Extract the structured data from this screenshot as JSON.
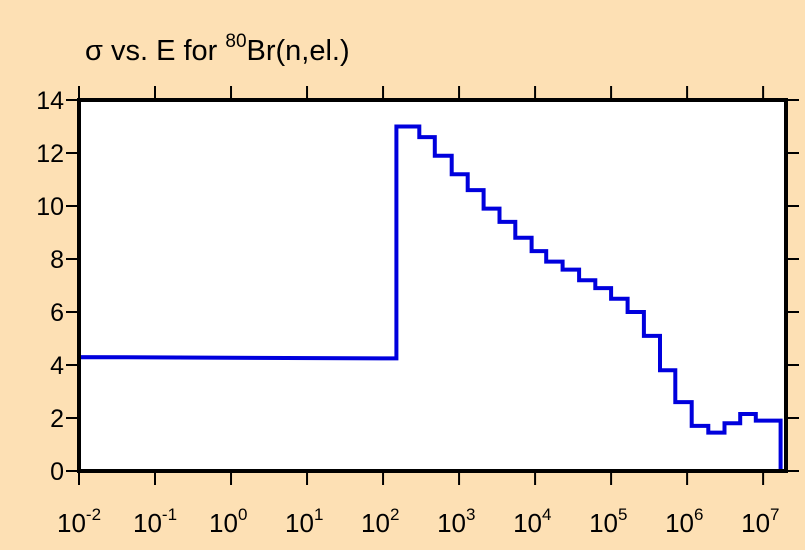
{
  "chart_data": {
    "type": "line",
    "title_prefix": "σ vs. E for ",
    "title_sup": "80",
    "title_suffix": "Br(n,el.)",
    "xlabel": "",
    "ylabel": "",
    "x_scale": "log",
    "xlim": [
      0.01,
      20000000
    ],
    "ylim": [
      0,
      14
    ],
    "y_ticks": [
      0,
      2,
      4,
      6,
      8,
      10,
      12,
      14
    ],
    "y_tick_labels": [
      "0",
      "2",
      "4",
      "6",
      "8",
      "10",
      "12",
      "14"
    ],
    "x_ticks": [
      0.01,
      0.1,
      1,
      10,
      100,
      1000,
      10000,
      100000,
      1000000,
      10000000
    ],
    "x_tick_labels": [
      {
        "base": "10",
        "exp": "-2"
      },
      {
        "base": "10",
        "exp": "-1"
      },
      {
        "base": "10",
        "exp": "0"
      },
      {
        "base": "10",
        "exp": "1"
      },
      {
        "base": "10",
        "exp": "2"
      },
      {
        "base": "10",
        "exp": "3"
      },
      {
        "base": "10",
        "exp": "4"
      },
      {
        "base": "10",
        "exp": "5"
      },
      {
        "base": "10",
        "exp": "6"
      },
      {
        "base": "10",
        "exp": "7"
      }
    ],
    "grid": false,
    "legend": "none",
    "series": [
      {
        "color": "#0000dd",
        "step": true,
        "points": [
          [
            0.01,
            0
          ],
          [
            0.01,
            4.3
          ],
          [
            150,
            4.25
          ],
          [
            150,
            13.0
          ],
          [
            300,
            13.0
          ],
          [
            300,
            12.6
          ],
          [
            480,
            12.6
          ],
          [
            480,
            11.9
          ],
          [
            800,
            11.9
          ],
          [
            800,
            11.2
          ],
          [
            1300,
            11.2
          ],
          [
            1300,
            10.6
          ],
          [
            2100,
            10.6
          ],
          [
            2100,
            9.9
          ],
          [
            3400,
            9.9
          ],
          [
            3400,
            9.4
          ],
          [
            5500,
            9.4
          ],
          [
            5500,
            8.8
          ],
          [
            9000,
            8.8
          ],
          [
            9000,
            8.3
          ],
          [
            14000,
            8.3
          ],
          [
            14000,
            7.9
          ],
          [
            23000,
            7.9
          ],
          [
            23000,
            7.6
          ],
          [
            38000,
            7.6
          ],
          [
            38000,
            7.2
          ],
          [
            62000,
            7.2
          ],
          [
            62000,
            6.9
          ],
          [
            100000,
            6.9
          ],
          [
            100000,
            6.5
          ],
          [
            165000,
            6.5
          ],
          [
            165000,
            6.0
          ],
          [
            270000,
            6.0
          ],
          [
            270000,
            5.1
          ],
          [
            440000,
            5.1
          ],
          [
            440000,
            3.8
          ],
          [
            700000,
            3.8
          ],
          [
            700000,
            2.6
          ],
          [
            1150000,
            2.6
          ],
          [
            1150000,
            1.7
          ],
          [
            1900000,
            1.7
          ],
          [
            1900000,
            1.45
          ],
          [
            3100000,
            1.45
          ],
          [
            3100000,
            1.8
          ],
          [
            5000000,
            1.8
          ],
          [
            5000000,
            2.15
          ],
          [
            8000000,
            2.15
          ],
          [
            8000000,
            1.9
          ],
          [
            17000000,
            1.9
          ],
          [
            17000000,
            0
          ]
        ]
      }
    ]
  }
}
